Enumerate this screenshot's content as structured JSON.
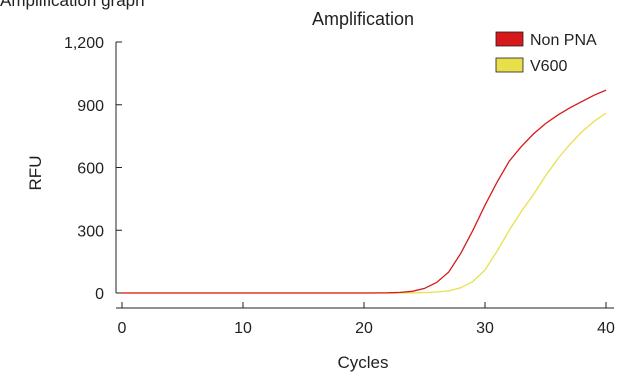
{
  "figure_label": "Amplification graph",
  "chart_data": {
    "type": "line",
    "title": "Amplification",
    "xlabel": "Cycles",
    "ylabel": "RFU",
    "xlim": [
      -1,
      41
    ],
    "ylim": [
      -50,
      1200
    ],
    "x_ticks": [
      0,
      10,
      20,
      30,
      40
    ],
    "y_ticks": [
      0,
      300,
      600,
      900,
      1200
    ],
    "y_tick_labels": [
      "0",
      "300",
      "600",
      "900",
      "1,200"
    ],
    "legend_position": "top-right",
    "series": [
      {
        "name": "Non PNA",
        "color": "#d7191c",
        "x": [
          0,
          5,
          10,
          15,
          20,
          22,
          23,
          24,
          25,
          26,
          27,
          28,
          29,
          30,
          31,
          32,
          33,
          34,
          35,
          36,
          37,
          38,
          39,
          40
        ],
        "y": [
          0,
          0,
          0,
          0,
          0,
          1,
          3,
          8,
          22,
          50,
          100,
          190,
          300,
          420,
          530,
          630,
          700,
          760,
          810,
          850,
          885,
          915,
          945,
          970
        ]
      },
      {
        "name": "V600",
        "color": "#e8e04a",
        "x": [
          0,
          5,
          10,
          15,
          20,
          22,
          24,
          25,
          26,
          27,
          28,
          29,
          30,
          31,
          32,
          33,
          34,
          35,
          36,
          37,
          38,
          39,
          40
        ],
        "y": [
          0,
          0,
          0,
          0,
          0,
          0,
          1,
          2,
          5,
          10,
          25,
          55,
          110,
          200,
          300,
          390,
          470,
          560,
          640,
          710,
          770,
          820,
          860
        ]
      }
    ]
  }
}
